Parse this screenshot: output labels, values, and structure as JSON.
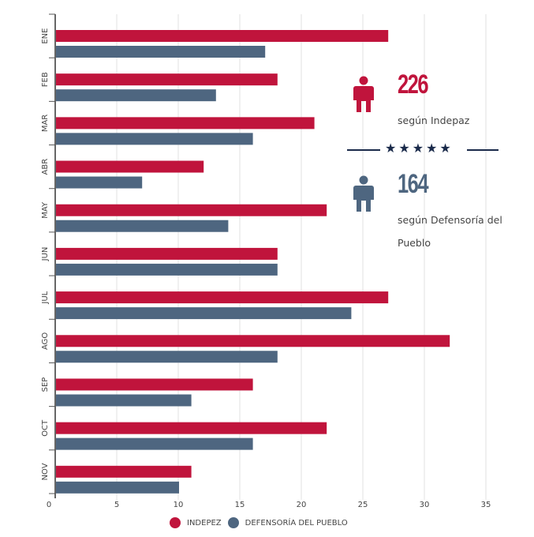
{
  "chart_data": {
    "type": "bar",
    "orientation": "horizontal",
    "categories": [
      "ENE",
      "FEB",
      "MAR",
      "ABR",
      "MAY",
      "JUN",
      "JUL",
      "AGO",
      "SEP",
      "OCT",
      "NOV"
    ],
    "series": [
      {
        "name": "INDEPEZ",
        "color": "#c0143c",
        "values": [
          27,
          18,
          21,
          12,
          22,
          18,
          27,
          32,
          16,
          22,
          11
        ]
      },
      {
        "name": "DEFENSORÍA DEL PUEBLO",
        "color": "#4e6680",
        "values": [
          17,
          13,
          16,
          7,
          14,
          18,
          24,
          18,
          11,
          16,
          10
        ]
      }
    ],
    "xticks": [
      "0",
      "5",
      "10",
      "15",
      "20",
      "25",
      "30",
      "35"
    ],
    "xlim": [
      0,
      36
    ],
    "grid": true,
    "legend": "bottom"
  },
  "stats": {
    "indepez_total": "226",
    "indepez_label": "según Indepaz",
    "defensoria_total": "164",
    "defensoria_label": "según Defensoría del Pueblo",
    "stars": "★★★★★"
  }
}
